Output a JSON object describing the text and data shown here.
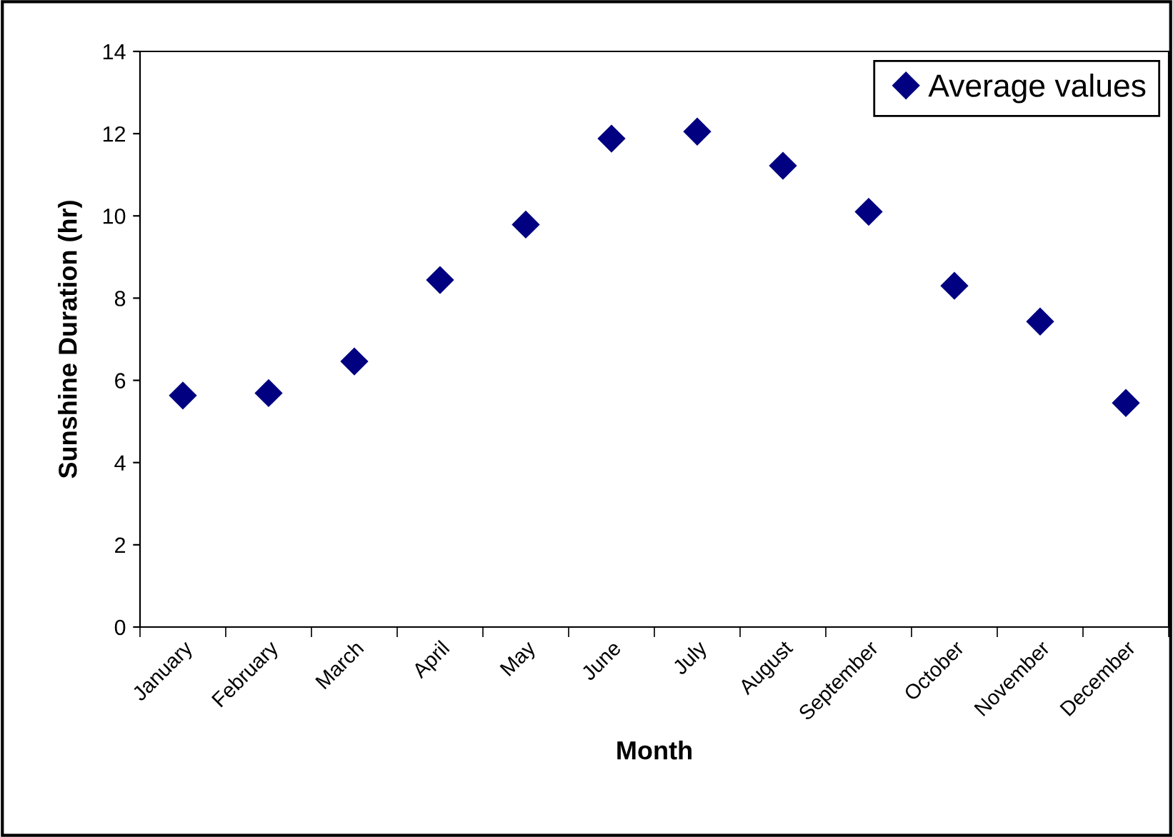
{
  "chart_data": {
    "type": "scatter",
    "xlabel": "Month",
    "ylabel": "Sunshine Duration (hr)",
    "categories": [
      "January",
      "February",
      "March",
      "April",
      "May",
      "June",
      "July",
      "August",
      "September",
      "October",
      "November",
      "December"
    ],
    "series": [
      {
        "name": "Average values",
        "color": "#000080",
        "values": [
          5.63,
          5.69,
          6.46,
          8.44,
          9.79,
          11.88,
          12.05,
          11.22,
          10.1,
          8.3,
          7.43,
          5.45
        ]
      }
    ],
    "ylim": [
      0,
      14
    ],
    "yticks": [
      0,
      2,
      4,
      6,
      8,
      10,
      12,
      14
    ],
    "grid": false,
    "legend": "top right",
    "marker": "diamond"
  }
}
